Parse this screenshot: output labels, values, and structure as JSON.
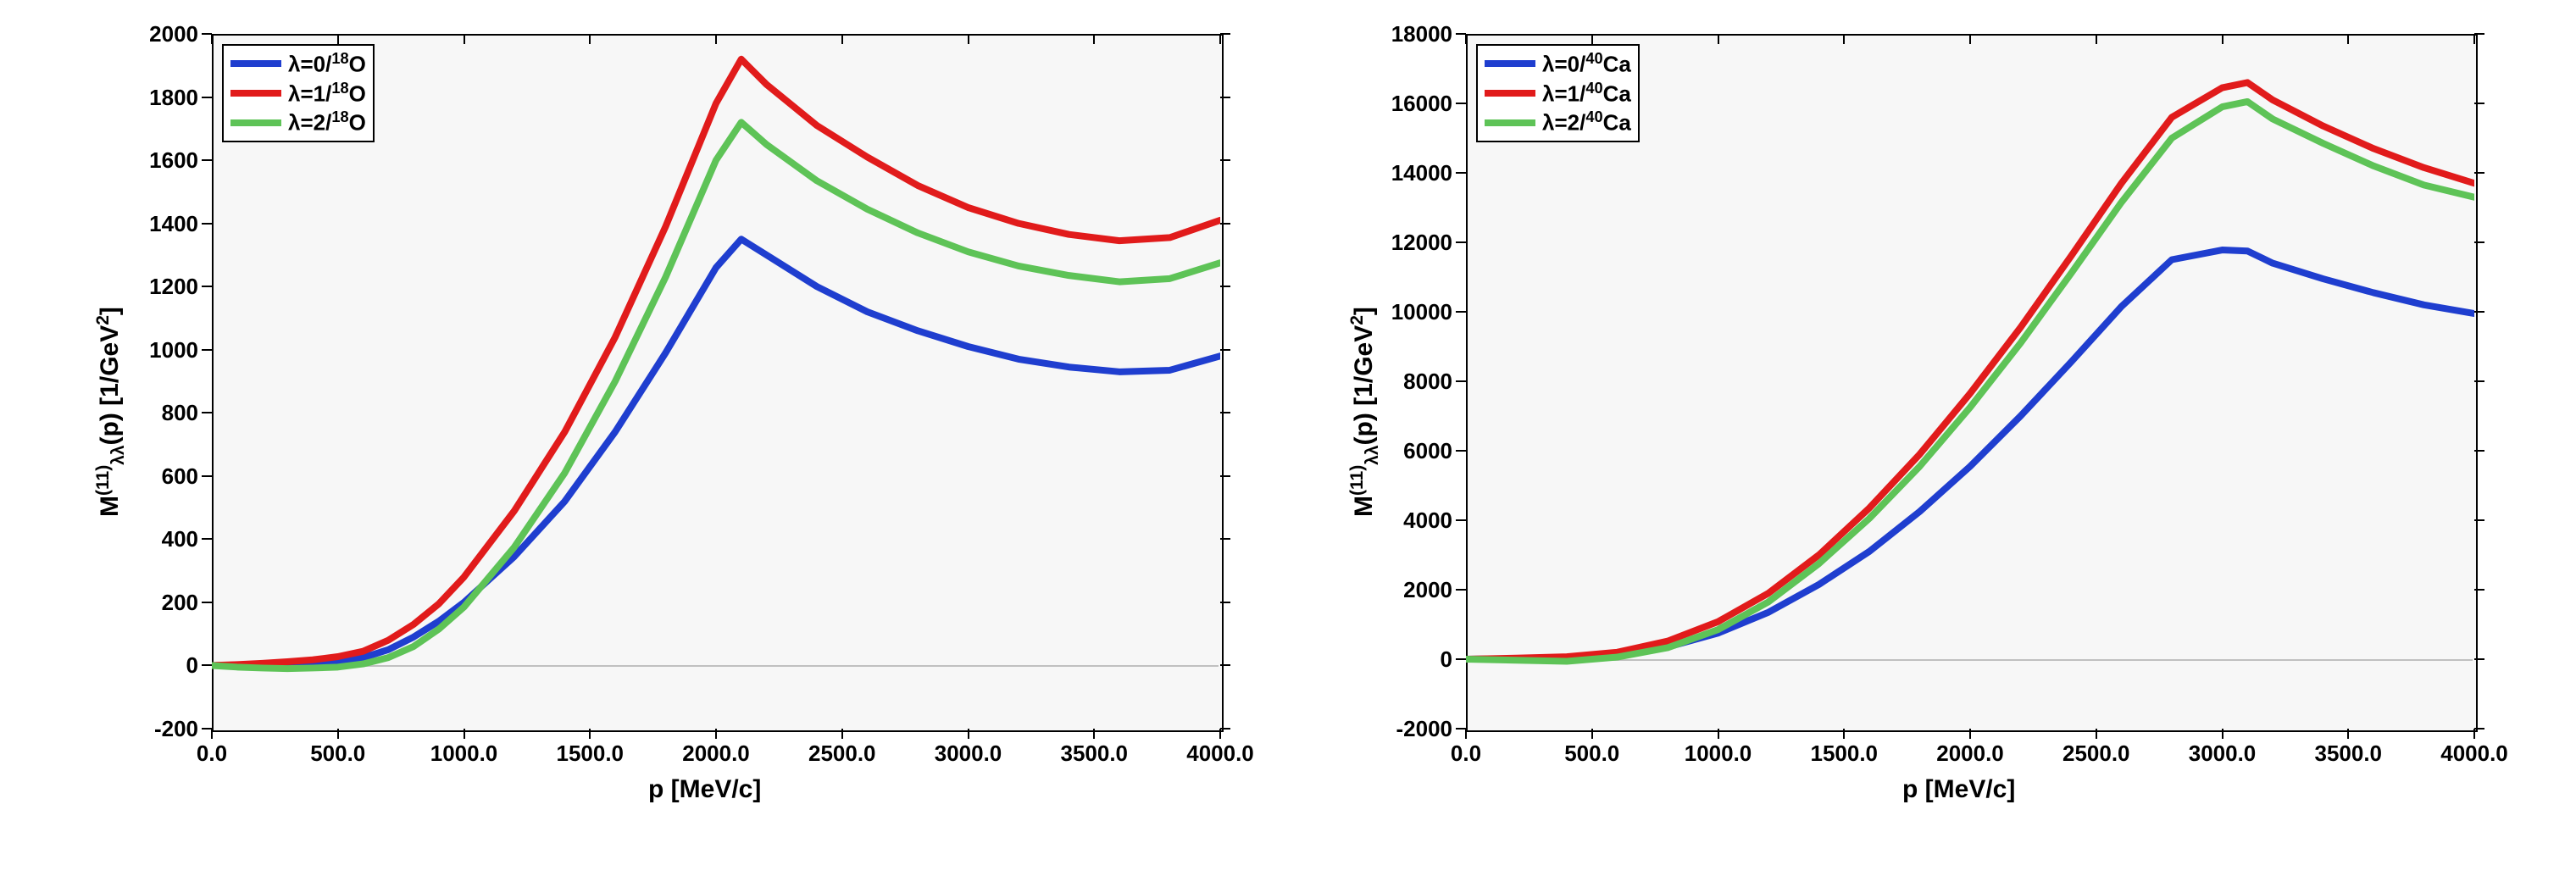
{
  "chart_left": {
    "type": "line",
    "xlabel": "p [MeV/c]",
    "ylabel": "M(11)λλ(p) [1/GeV2]",
    "label_fontsize": 30,
    "tick_fontsize": 26,
    "background_color": "#f7f7f7",
    "axis_color": "#000000",
    "zero_line_color": "#c0c0c0",
    "x": {
      "min": 0,
      "max": 4000,
      "tick_step": 500
    },
    "y": {
      "min": -200,
      "max": 2000,
      "tick_step": 200
    },
    "line_width": 8,
    "series": [
      {
        "label": "λ=0/18O",
        "color": "#1f3ecf",
        "x": [
          0,
          100,
          200,
          300,
          400,
          500,
          600,
          700,
          800,
          900,
          1000,
          1200,
          1400,
          1600,
          1800,
          2000,
          2100,
          2200,
          2400,
          2600,
          2800,
          3000,
          3200,
          3400,
          3600,
          3800,
          4000
        ],
        "y": [
          0,
          2,
          5,
          8,
          10,
          14,
          25,
          50,
          90,
          140,
          200,
          345,
          520,
          740,
          990,
          1260,
          1350,
          1300,
          1200,
          1120,
          1060,
          1010,
          970,
          945,
          930,
          935,
          980
        ]
      },
      {
        "label": "λ=1/18O",
        "color": "#e11b1b",
        "x": [
          0,
          100,
          200,
          300,
          400,
          500,
          600,
          700,
          800,
          900,
          1000,
          1200,
          1400,
          1600,
          1800,
          2000,
          2100,
          2200,
          2400,
          2600,
          2800,
          3000,
          3200,
          3400,
          3600,
          3800,
          4000
        ],
        "y": [
          0,
          3,
          7,
          12,
          18,
          28,
          45,
          80,
          130,
          195,
          280,
          490,
          740,
          1040,
          1390,
          1780,
          1920,
          1840,
          1710,
          1610,
          1520,
          1450,
          1400,
          1365,
          1345,
          1355,
          1410
        ]
      },
      {
        "label": "λ=2/18O",
        "color": "#5ec357",
        "x": [
          0,
          100,
          200,
          300,
          400,
          500,
          600,
          700,
          800,
          900,
          1000,
          1200,
          1400,
          1600,
          1800,
          2000,
          2100,
          2200,
          2400,
          2600,
          2800,
          3000,
          3200,
          3400,
          3600,
          3800,
          4000
        ],
        "y": [
          0,
          -5,
          -8,
          -10,
          -8,
          -5,
          5,
          25,
          60,
          115,
          185,
          375,
          610,
          900,
          1230,
          1600,
          1720,
          1650,
          1535,
          1445,
          1370,
          1310,
          1265,
          1235,
          1215,
          1225,
          1275
        ]
      }
    ],
    "legend_position": "top-left"
  },
  "chart_right": {
    "type": "line",
    "xlabel": "p [MeV/c]",
    "ylabel": "M(11)λλ(p) [1/GeV2]",
    "label_fontsize": 30,
    "tick_fontsize": 26,
    "background_color": "#f7f7f7",
    "axis_color": "#000000",
    "zero_line_color": "#c0c0c0",
    "x": {
      "min": 0,
      "max": 4000,
      "tick_step": 500
    },
    "y": {
      "min": -2000,
      "max": 18000,
      "tick_step": 2000
    },
    "line_width": 8,
    "series": [
      {
        "label": "λ=0/40Ca",
        "color": "#1f3ecf",
        "x": [
          0,
          200,
          400,
          600,
          800,
          1000,
          1200,
          1400,
          1600,
          1800,
          2000,
          2200,
          2400,
          2600,
          2800,
          3000,
          3100,
          3200,
          3400,
          3600,
          3800,
          4000
        ],
        "y": [
          0,
          20,
          40,
          120,
          350,
          750,
          1350,
          2150,
          3100,
          4250,
          5550,
          7000,
          8550,
          10150,
          11500,
          11780,
          11750,
          11400,
          10950,
          10550,
          10200,
          9950
        ]
      },
      {
        "label": "λ=1/40Ca",
        "color": "#e11b1b",
        "x": [
          0,
          200,
          400,
          600,
          800,
          1000,
          1200,
          1400,
          1600,
          1800,
          2000,
          2200,
          2400,
          2600,
          2800,
          3000,
          3100,
          3200,
          3400,
          3600,
          3800,
          4000
        ],
        "y": [
          0,
          30,
          70,
          200,
          520,
          1080,
          1900,
          3000,
          4350,
          5900,
          7650,
          9550,
          11600,
          13700,
          15600,
          16450,
          16600,
          16100,
          15350,
          14700,
          14150,
          13700
        ]
      },
      {
        "label": "λ=2/40Ca",
        "color": "#5ec357",
        "x": [
          0,
          200,
          400,
          600,
          800,
          1000,
          1200,
          1400,
          1600,
          1800,
          2000,
          2200,
          2400,
          2600,
          2800,
          3000,
          3100,
          3200,
          3400,
          3600,
          3800,
          4000
        ],
        "y": [
          0,
          -30,
          -60,
          60,
          330,
          850,
          1650,
          2750,
          4050,
          5550,
          7250,
          9100,
          11100,
          13150,
          15000,
          15900,
          16050,
          15550,
          14850,
          14200,
          13650,
          13300
        ]
      }
    ],
    "legend_position": "top-left"
  }
}
